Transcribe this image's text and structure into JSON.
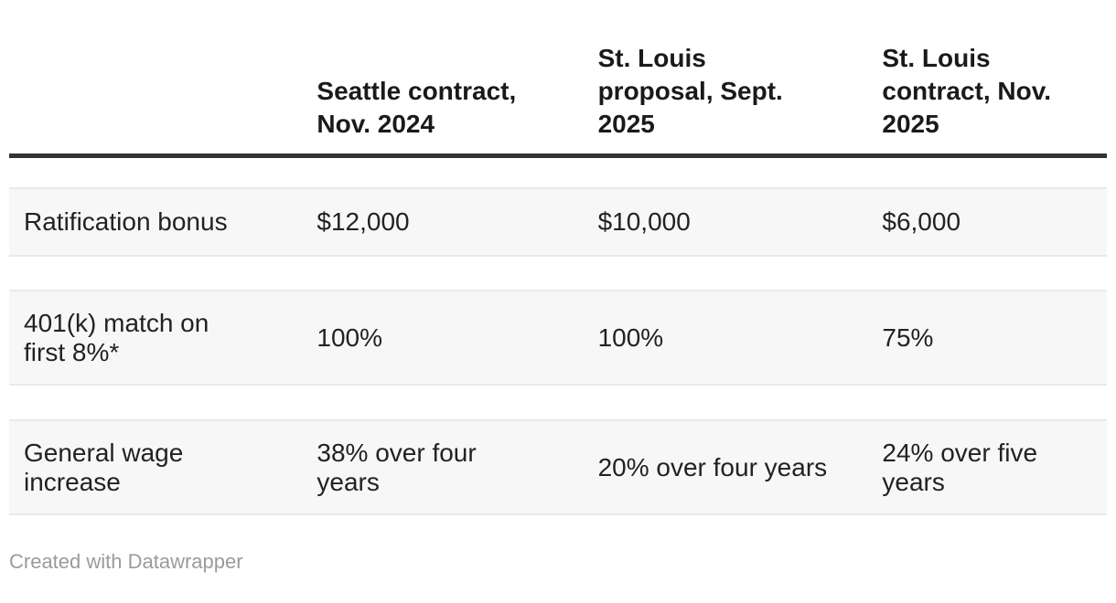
{
  "table": {
    "columns": [
      {
        "label": ""
      },
      {
        "label": "Seattle contract,\nNov. 2024"
      },
      {
        "label": "St. Louis\nproposal, Sept.\n2025"
      },
      {
        "label": "St. Louis\ncontract, Nov.\n2025"
      }
    ],
    "rows": [
      {
        "label": "Ratification bonus",
        "values": [
          "$12,000",
          "$10,000",
          "$6,000"
        ]
      },
      {
        "label": "401(k) match on\nfirst 8%*",
        "values": [
          "100%",
          "100%",
          "75%"
        ]
      },
      {
        "label": "General wage\nincrease",
        "values": [
          "38% over four\nyears",
          "20% over four years",
          "24% over five\nyears"
        ]
      }
    ]
  },
  "footer": {
    "attribution": "Created with Datawrapper"
  },
  "colors": {
    "row_band": "#f7f7f7",
    "row_border": "#e9e9e9",
    "header_rule": "#333333",
    "header_text": "#1a1a1a",
    "body_text": "#222222",
    "footer_text": "#9b9b9b",
    "background": "#ffffff"
  },
  "chart_data": {
    "type": "table",
    "columns": [
      "",
      "Seattle contract, Nov. 2024",
      "St. Louis proposal, Sept. 2025",
      "St. Louis contract, Nov. 2025"
    ],
    "rows": [
      [
        "Ratification bonus",
        "$12,000",
        "$10,000",
        "$6,000"
      ],
      [
        "401(k) match on first 8%*",
        "100%",
        "100%",
        "75%"
      ],
      [
        "General wage increase",
        "38% over four years",
        "20% over four years",
        "24% over five years"
      ]
    ],
    "title": "",
    "legend_position": "none",
    "grid": "row-bands"
  }
}
